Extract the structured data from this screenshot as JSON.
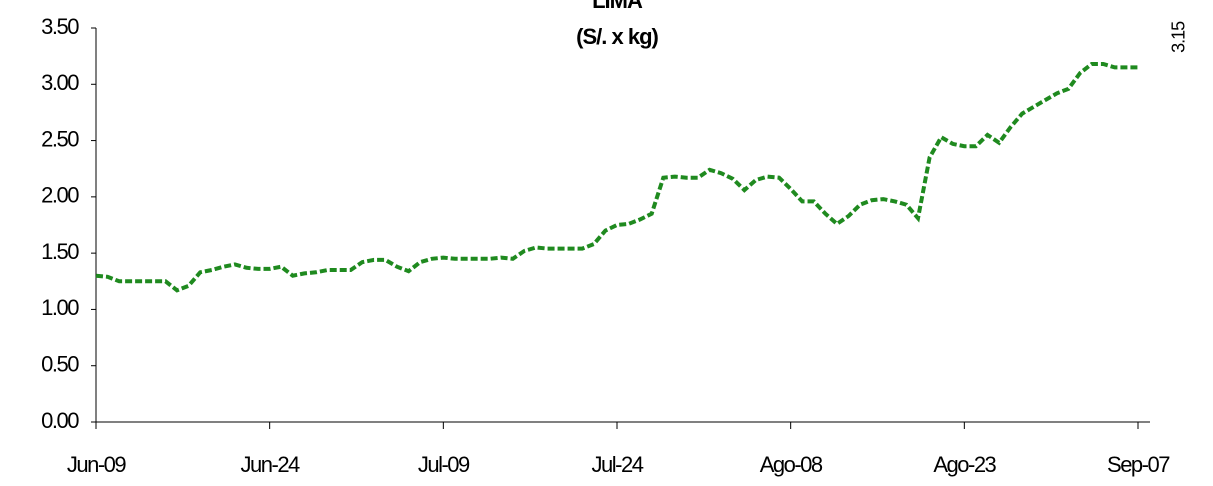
{
  "chart_data": {
    "type": "line",
    "title": "LIMA",
    "subtitle": "(S/. x kg)",
    "categories": [
      "Jun-09",
      null,
      null,
      null,
      null,
      null,
      null,
      null,
      null,
      null,
      null,
      null,
      null,
      null,
      null,
      "Jun-24",
      null,
      null,
      null,
      null,
      null,
      null,
      null,
      null,
      null,
      null,
      null,
      null,
      null,
      null,
      "Jul-09",
      null,
      null,
      null,
      null,
      null,
      null,
      null,
      null,
      null,
      null,
      null,
      null,
      null,
      null,
      "Jul-24",
      null,
      null,
      null,
      null,
      null,
      null,
      null,
      null,
      null,
      null,
      null,
      null,
      null,
      null,
      "Ago-08",
      null,
      null,
      null,
      null,
      null,
      null,
      null,
      null,
      null,
      null,
      null,
      null,
      null,
      null,
      "Ago-23",
      null,
      null,
      null,
      null,
      null,
      null,
      null,
      null,
      null,
      null,
      null,
      null,
      null,
      null,
      "Sep-07"
    ],
    "series": [
      {
        "color": "#1f8a1f",
        "values": [
          1.3,
          1.29,
          1.25,
          1.25,
          1.25,
          1.25,
          1.25,
          1.17,
          1.21,
          1.33,
          1.35,
          1.38,
          1.4,
          1.37,
          1.36,
          1.36,
          1.38,
          1.3,
          1.32,
          1.33,
          1.35,
          1.35,
          1.35,
          1.42,
          1.44,
          1.44,
          1.38,
          1.34,
          1.42,
          1.45,
          1.46,
          1.45,
          1.45,
          1.45,
          1.45,
          1.46,
          1.45,
          1.52,
          1.55,
          1.54,
          1.54,
          1.54,
          1.54,
          1.58,
          1.7,
          1.75,
          1.76,
          1.8,
          1.85,
          2.17,
          2.18,
          2.17,
          2.17,
          2.24,
          2.21,
          2.16,
          2.06,
          2.15,
          2.18,
          2.17,
          2.07,
          1.96,
          1.96,
          1.85,
          1.76,
          1.83,
          1.93,
          1.97,
          1.98,
          1.96,
          1.93,
          1.81,
          2.35,
          2.53,
          2.47,
          2.45,
          2.45,
          2.55,
          2.48,
          2.62,
          2.74,
          2.8,
          2.86,
          2.92,
          2.96,
          3.1,
          3.18,
          3.18,
          3.15,
          3.15,
          3.15
        ]
      }
    ],
    "data_labels": "last",
    "ylim": [
      0,
      3.5
    ],
    "yticks": [
      {
        "value": 0,
        "label": "0.00"
      },
      {
        "value": 0.5,
        "label": "0.50"
      },
      {
        "value": 1,
        "label": "1.00"
      },
      {
        "value": 1.5,
        "label": "1.50"
      },
      {
        "value": 2,
        "label": "2.00"
      },
      {
        "value": 2.5,
        "label": "2.50"
      },
      {
        "value": 3,
        "label": "3.00"
      },
      {
        "value": 3.5,
        "label": "3.50"
      }
    ],
    "grid": false
  }
}
